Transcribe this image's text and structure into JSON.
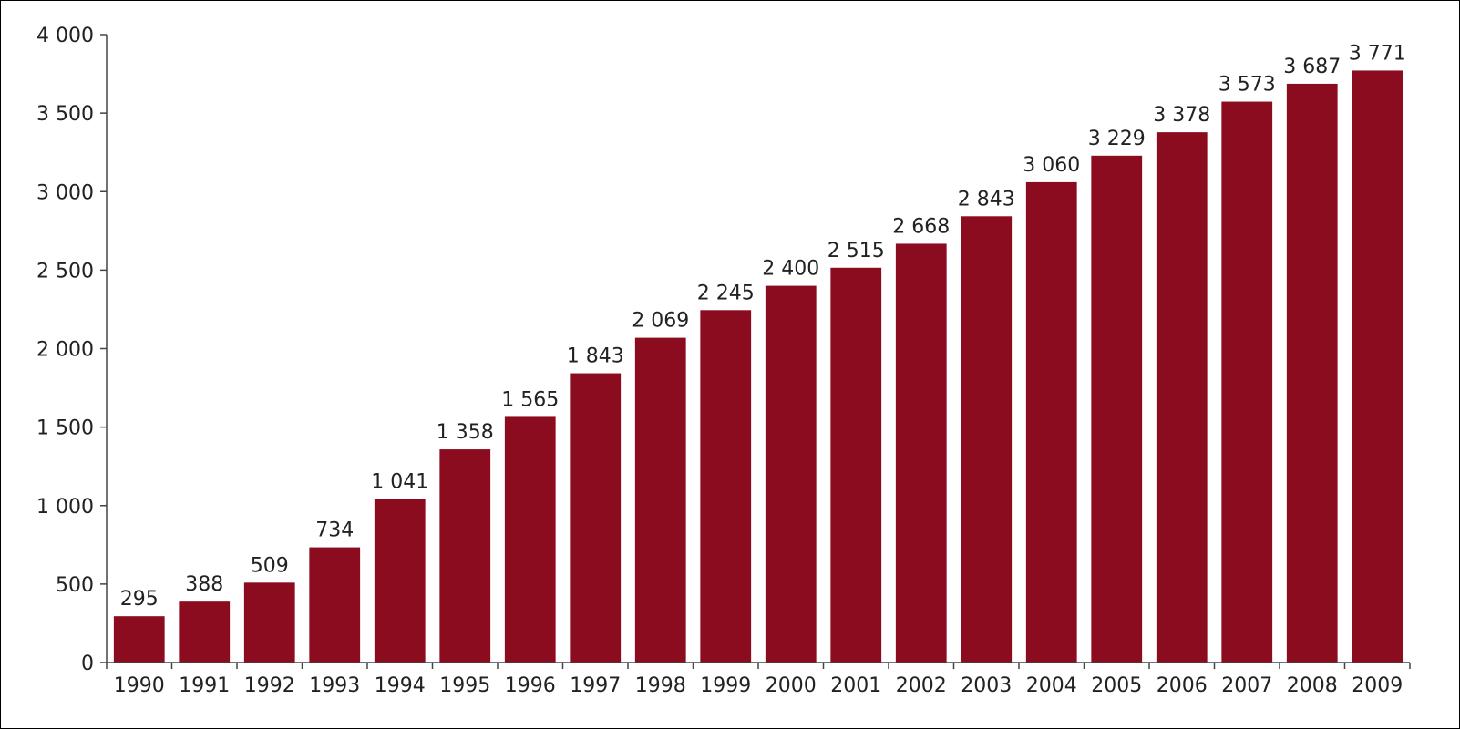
{
  "chart_data": {
    "type": "bar",
    "title": "",
    "xlabel": "",
    "ylabel": "",
    "categories": [
      "1990",
      "1991",
      "1992",
      "1993",
      "1994",
      "1995",
      "1996",
      "1997",
      "1998",
      "1999",
      "2000",
      "2001",
      "2002",
      "2003",
      "2004",
      "2005",
      "2006",
      "2007",
      "2008",
      "2009"
    ],
    "values": [
      295,
      388,
      509,
      734,
      1041,
      1358,
      1565,
      1843,
      2069,
      2245,
      2400,
      2515,
      2668,
      2843,
      3060,
      3229,
      3378,
      3573,
      3687,
      3771
    ],
    "value_labels": [
      "295",
      "388",
      "509",
      "734",
      "1 041",
      "1 358",
      "1 565",
      "1 843",
      "2 069",
      "2 245",
      "2 400",
      "2 515",
      "2 668",
      "2 843",
      "3 060",
      "3 229",
      "3 378",
      "3 573",
      "3 687",
      "3 771"
    ],
    "yticks": [
      0,
      500,
      1000,
      1500,
      2000,
      2500,
      3000,
      3500,
      4000
    ],
    "ytick_labels": [
      "0",
      "500",
      "1 000",
      "1 500",
      "2 000",
      "2 500",
      "3 000",
      "3 500",
      "4 000"
    ],
    "ylim": [
      0,
      4000
    ],
    "grid": false,
    "legend": "none",
    "bar_color": "#8b0c1f"
  }
}
